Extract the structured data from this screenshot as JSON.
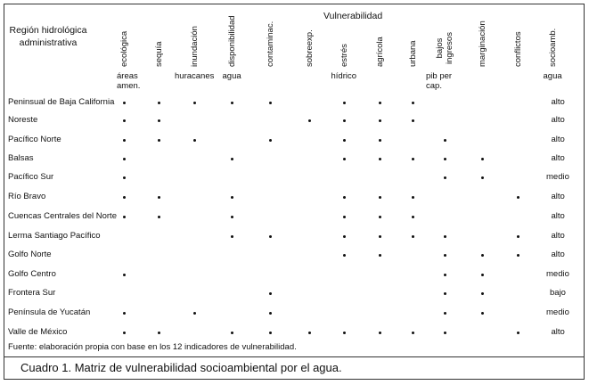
{
  "table": {
    "vulnerability_header": "Vulnerabilidad",
    "region_header": "Región hidrológica administrativa",
    "columns": [
      {
        "label": "ecológica",
        "sub": "áreas amen."
      },
      {
        "label": "sequía",
        "sub": ""
      },
      {
        "label": "inundación",
        "sub": "huracanes"
      },
      {
        "label": "disponibilidad",
        "sub": "agua"
      },
      {
        "label": "contaminac.",
        "sub": ""
      },
      {
        "label": "sobreexp.",
        "sub": ""
      },
      {
        "label": "estrés",
        "sub": "hídrico"
      },
      {
        "label": "agrícola",
        "sub": ""
      },
      {
        "label": "urbana",
        "sub": ""
      },
      {
        "label": "bajos ingresos",
        "sub": "pib per cap."
      },
      {
        "label": "marginación",
        "sub": ""
      },
      {
        "label": "conflictos",
        "sub": ""
      },
      {
        "label": "socioamb.",
        "sub": "agua"
      }
    ],
    "rows": [
      {
        "region": "Peninsual de Baja California",
        "marks": [
          1,
          1,
          1,
          1,
          1,
          0,
          1,
          1,
          1,
          0,
          0,
          0
        ],
        "level": "alto"
      },
      {
        "region": "Noreste",
        "marks": [
          1,
          1,
          0,
          0,
          0,
          1,
          1,
          1,
          1,
          0,
          0,
          0
        ],
        "level": "alto"
      },
      {
        "region": "Pacífico Norte",
        "marks": [
          1,
          1,
          1,
          0,
          1,
          0,
          1,
          1,
          0,
          1,
          0,
          0
        ],
        "level": "alto"
      },
      {
        "region": "Balsas",
        "marks": [
          1,
          0,
          0,
          1,
          0,
          0,
          1,
          1,
          1,
          1,
          1,
          0
        ],
        "level": "alto"
      },
      {
        "region": "Pacífico Sur",
        "marks": [
          1,
          0,
          0,
          0,
          0,
          0,
          0,
          0,
          0,
          1,
          1,
          0
        ],
        "level": "medio"
      },
      {
        "region": "Río Bravo",
        "marks": [
          1,
          1,
          0,
          1,
          0,
          0,
          1,
          1,
          1,
          0,
          0,
          1
        ],
        "level": "alto"
      },
      {
        "region": "Cuencas Centrales del Norte",
        "marks": [
          1,
          1,
          0,
          1,
          0,
          0,
          1,
          1,
          1,
          0,
          0,
          0
        ],
        "level": "alto"
      },
      {
        "region": "Lerma Santiago Pacífico",
        "marks": [
          0,
          0,
          0,
          1,
          1,
          0,
          1,
          1,
          1,
          1,
          0,
          1
        ],
        "level": "alto"
      },
      {
        "region": "Golfo Norte",
        "marks": [
          0,
          0,
          0,
          0,
          0,
          0,
          1,
          1,
          0,
          1,
          1,
          1
        ],
        "level": "alto"
      },
      {
        "region": "Golfo Centro",
        "marks": [
          1,
          0,
          0,
          0,
          0,
          0,
          0,
          0,
          0,
          1,
          1,
          0
        ],
        "level": "medio"
      },
      {
        "region": "Frontera Sur",
        "marks": [
          0,
          0,
          0,
          0,
          1,
          0,
          0,
          0,
          0,
          1,
          1,
          0
        ],
        "level": "bajo"
      },
      {
        "region": "Península de Yucatán",
        "marks": [
          1,
          0,
          1,
          0,
          1,
          0,
          0,
          0,
          0,
          1,
          1,
          0
        ],
        "level": "medio"
      },
      {
        "region": "Valle de México",
        "marks": [
          1,
          1,
          0,
          1,
          1,
          1,
          1,
          1,
          1,
          1,
          0,
          1
        ],
        "level": "alto"
      }
    ]
  },
  "source_note": "Fuente: elaboración propia con base en los 12 indicadores de vulnerabilidad.",
  "caption": "Cuadro 1. Matriz de vulnerabilidad socioambiental por el agua."
}
